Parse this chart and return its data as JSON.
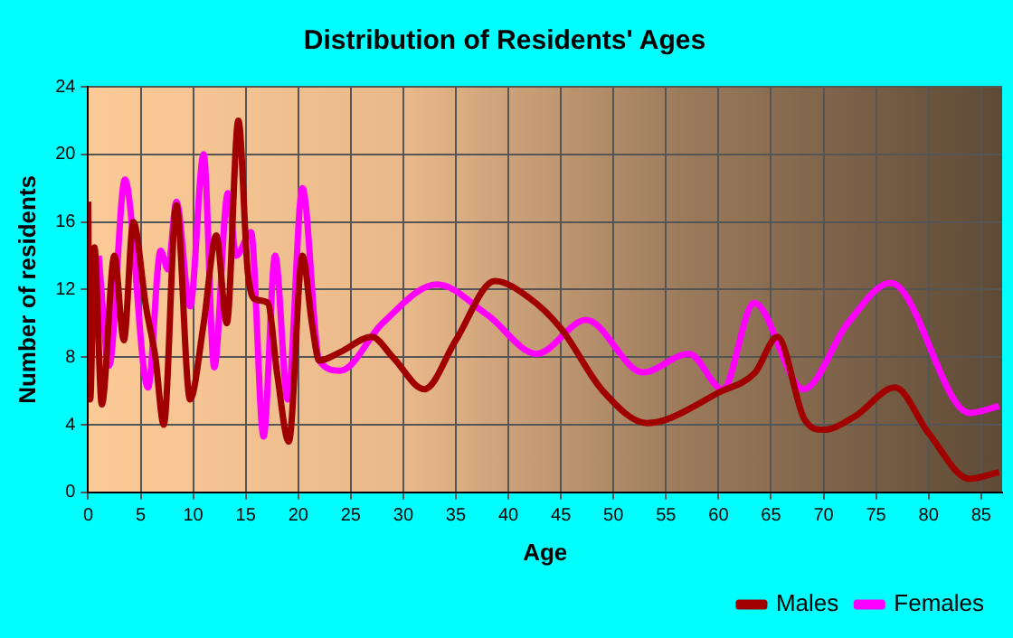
{
  "chart_data": {
    "type": "line",
    "title": "Distribution of Residents' Ages",
    "xlabel": "Age",
    "ylabel": "Number of residents",
    "xlim": [
      0,
      87
    ],
    "xticks": [
      0,
      5,
      10,
      15,
      20,
      25,
      30,
      35,
      40,
      45,
      50,
      55,
      60,
      65,
      70,
      75,
      80,
      85
    ],
    "ylim": [
      0,
      24
    ],
    "yticks": [
      0,
      4,
      8,
      12,
      16,
      20,
      24
    ],
    "grid": true,
    "legend": "bottom right",
    "marker": "none",
    "line_style": "solid",
    "series": [
      {
        "name": "Males",
        "color": "#a00000",
        "x": [
          0,
          0.2,
          0.6,
          1.3,
          2.5,
          3.4,
          4.3,
          5.5,
          6.4,
          7.2,
          8.4,
          9.7,
          11,
          12.2,
          13.2,
          14.3,
          15.2,
          16,
          17.1,
          18,
          19.1,
          20.4,
          21.3,
          22,
          24,
          27,
          29,
          32,
          35,
          38.7,
          42,
          45,
          49,
          53.2,
          55,
          60,
          63.5,
          65.6,
          68.2,
          70,
          73,
          76.8,
          80,
          83.9,
          86.7
        ],
        "values": [
          17.2,
          5.5,
          14.5,
          5.2,
          14,
          9,
          16,
          11,
          8,
          4,
          17,
          5.5,
          10,
          15.2,
          10,
          22,
          13,
          11.4,
          11.2,
          7,
          3,
          14,
          10,
          7.8,
          8.3,
          9.2,
          8,
          6.1,
          9,
          12.5,
          11.5,
          9.7,
          6,
          4.1,
          4.3,
          5.9,
          7.1,
          9.2,
          4.3,
          3.7,
          4.5,
          6.2,
          3.5,
          0.8,
          1.2
        ]
      },
      {
        "name": "Females",
        "color": "#ff00ff",
        "x": [
          1,
          2,
          3.5,
          5.7,
          6.9,
          7.6,
          8.4,
          9.7,
          11,
          12,
          13.3,
          14.1,
          15.5,
          16.7,
          17.8,
          19,
          20.4,
          22,
          24,
          28,
          33.2,
          38,
          42.7,
          47.4,
          52.8,
          57.2,
          60.4,
          63.4,
          68.1,
          72.3,
          76.4,
          83.9,
          86.7
        ],
        "values": [
          14,
          7.5,
          18.5,
          6.2,
          14.3,
          13.2,
          17.2,
          11,
          20,
          7.4,
          17.7,
          14,
          15.4,
          3.3,
          14,
          5.5,
          18,
          7.8,
          7.2,
          10,
          12.3,
          10.5,
          8.2,
          10.2,
          7.1,
          8.2,
          6.1,
          11.2,
          6.1,
          10,
          12.4,
          4.7,
          5.1
        ]
      }
    ]
  }
}
